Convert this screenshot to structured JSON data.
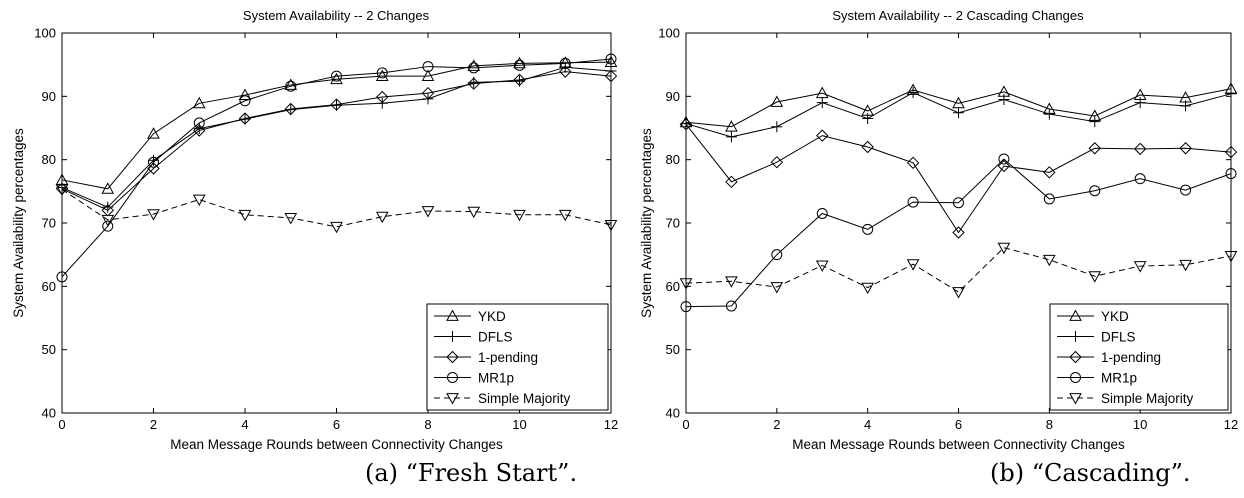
{
  "chart_data": [
    {
      "type": "line",
      "title": "System Availability -- 2 Changes",
      "xlabel": "Mean Message Rounds between Connectivity Changes",
      "ylabel": "System Availability percentages",
      "caption": "(a) “Fresh Start”.",
      "xlim": [
        0,
        12
      ],
      "ylim": [
        40,
        100
      ],
      "xticks": [
        "0",
        "2",
        "4",
        "6",
        "8",
        "10",
        "12"
      ],
      "yticks": [
        "40",
        "50",
        "60",
        "70",
        "80",
        "90",
        "100"
      ],
      "legend_position": "bottom-right",
      "grid": false,
      "x": [
        0,
        1,
        2,
        3,
        4,
        5,
        6,
        7,
        8,
        9,
        10,
        11,
        12
      ],
      "series": [
        {
          "name": "YKD",
          "marker": "triangle-up",
          "dashed": false,
          "values": [
            76.8,
            75.4,
            84.1,
            88.9,
            90.2,
            91.8,
            92.7,
            93.2,
            93.2,
            94.8,
            95.2,
            95.3,
            95.4
          ]
        },
        {
          "name": "DFLS",
          "marker": "plus",
          "dashed": false,
          "values": [
            75.6,
            72.5,
            79.9,
            84.9,
            86.4,
            87.9,
            88.6,
            88.9,
            89.6,
            92.2,
            92.4,
            94.6,
            94.0
          ]
        },
        {
          "name": "1-pending",
          "marker": "diamond",
          "dashed": false,
          "values": [
            75.4,
            72.0,
            78.6,
            84.6,
            86.5,
            88.0,
            88.7,
            89.9,
            90.5,
            92.0,
            92.6,
            93.9,
            93.2
          ]
        },
        {
          "name": "MR1p",
          "marker": "circle",
          "dashed": false,
          "values": [
            61.5,
            69.5,
            79.6,
            85.8,
            89.3,
            91.6,
            93.2,
            93.7,
            94.7,
            94.5,
            94.9,
            95.2,
            95.9
          ]
        },
        {
          "name": "Simple Majority",
          "marker": "triangle-down",
          "dashed": true,
          "values": [
            75.3,
            70.5,
            71.4,
            73.7,
            71.3,
            70.8,
            69.4,
            71.0,
            71.9,
            71.8,
            71.3,
            71.3,
            69.7
          ]
        }
      ]
    },
    {
      "type": "line",
      "title": "System Availability -- 2 Cascading Changes",
      "xlabel": "Mean Message Rounds between Connectivity Changes",
      "ylabel": "System Availability percentages",
      "caption": "(b) “Cascading”.",
      "xlim": [
        0,
        12
      ],
      "ylim": [
        40,
        100
      ],
      "xticks": [
        "0",
        "2",
        "4",
        "6",
        "8",
        "10",
        "12"
      ],
      "yticks": [
        "40",
        "50",
        "60",
        "70",
        "80",
        "90",
        "100"
      ],
      "legend_position": "bottom-right",
      "grid": false,
      "x": [
        0,
        1,
        2,
        3,
        4,
        5,
        6,
        7,
        8,
        9,
        10,
        11,
        12
      ],
      "series": [
        {
          "name": "YKD",
          "marker": "triangle-up",
          "dashed": false,
          "values": [
            85.9,
            85.2,
            89.1,
            90.5,
            87.7,
            91.0,
            88.9,
            90.7,
            88.0,
            86.9,
            90.2,
            89.8,
            91.2
          ]
        },
        {
          "name": "DFLS",
          "marker": "plus",
          "dashed": false,
          "values": [
            85.7,
            83.6,
            85.2,
            89.0,
            86.5,
            90.6,
            87.4,
            89.5,
            87.2,
            86.0,
            89.0,
            88.5,
            90.4
          ]
        },
        {
          "name": "1-pending",
          "marker": "diamond",
          "dashed": false,
          "values": [
            85.6,
            76.5,
            79.6,
            83.8,
            82.0,
            79.5,
            68.5,
            79.0,
            78.0,
            81.8,
            81.7,
            81.8,
            81.2
          ]
        },
        {
          "name": "MR1p",
          "marker": "circle",
          "dashed": false,
          "values": [
            56.8,
            56.9,
            65.0,
            71.5,
            69.0,
            73.3,
            73.2,
            80.1,
            73.8,
            75.1,
            77.0,
            75.2,
            77.8
          ]
        },
        {
          "name": "Simple Majority",
          "marker": "triangle-down",
          "dashed": true,
          "values": [
            60.5,
            60.8,
            59.9,
            63.3,
            59.8,
            63.5,
            59.1,
            66.1,
            64.2,
            61.6,
            63.2,
            63.4,
            64.8
          ]
        }
      ]
    }
  ]
}
